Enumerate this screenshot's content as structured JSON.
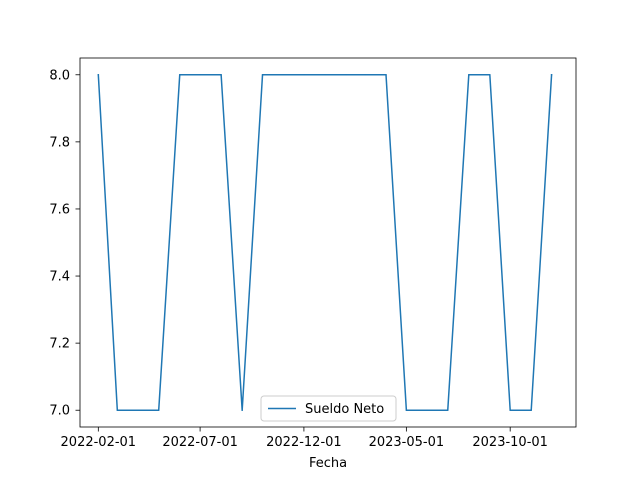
{
  "chart_data": {
    "type": "line",
    "title": "",
    "xlabel": "Fecha",
    "ylabel": "",
    "x_ticks": [
      "2022-02-01",
      "2022-07-01",
      "2022-12-01",
      "2023-05-01",
      "2023-10-01"
    ],
    "y_ticks": [
      "7.0",
      "7.2",
      "7.4",
      "7.6",
      "7.8",
      "8.0"
    ],
    "ylim": [
      6.95,
      8.05
    ],
    "xlim": [
      "2022-01-05",
      "2024-01-06"
    ],
    "grid": false,
    "legend": {
      "position": "bottom-center"
    },
    "series": [
      {
        "name": "Sueldo Neto",
        "color": "#1f77b4",
        "x": [
          "2022-02-01",
          "2022-03-01",
          "2022-04-01",
          "2022-05-01",
          "2022-06-01",
          "2022-07-01",
          "2022-08-01",
          "2022-09-01",
          "2022-10-01",
          "2022-11-01",
          "2022-12-01",
          "2023-01-01",
          "2023-02-01",
          "2023-03-01",
          "2023-04-01",
          "2023-05-01",
          "2023-06-01",
          "2023-07-01",
          "2023-08-01",
          "2023-09-01",
          "2023-10-01",
          "2023-11-01",
          "2023-12-01"
        ],
        "y": [
          8,
          7,
          7,
          7,
          8,
          8,
          8,
          7,
          8,
          8,
          8,
          8,
          8,
          8,
          8,
          7,
          7,
          7,
          8,
          8,
          7,
          7,
          8
        ]
      }
    ]
  }
}
